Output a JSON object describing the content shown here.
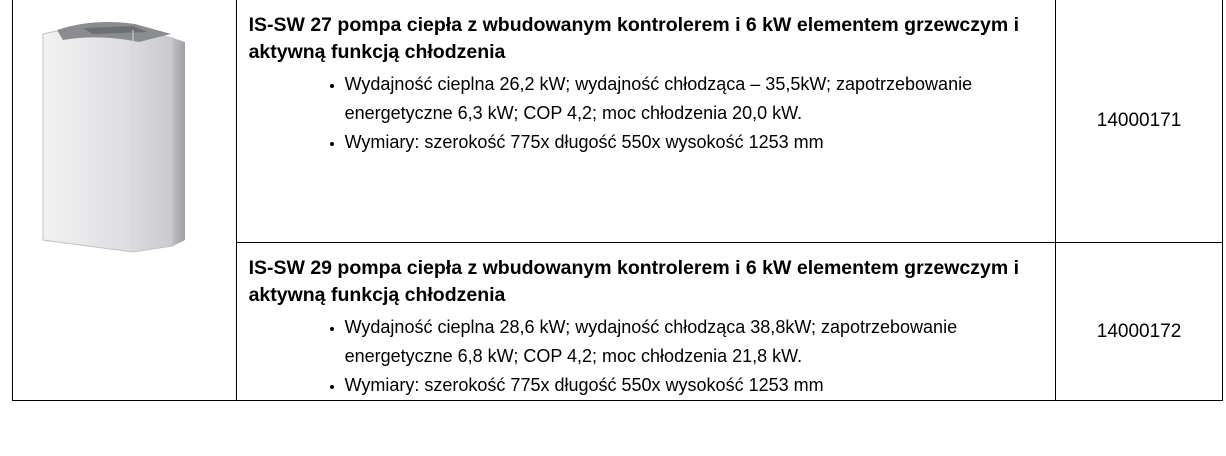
{
  "table": {
    "rows": [
      {
        "title": "IS-SW 27 pompa ciepła z wbudowanym kontrolerem i 6 kW elementem grzewczym i aktywną funkcją chłodzenia",
        "bullets": [
          "Wydajność cieplna 26,2 kW; wydajność chłodząca – 35,5kW; zapotrzebowanie energetyczne 6,3 kW; COP 4,2; moc chłodzenia 20,0 kW.",
          "Wymiary: szerokość  775x długość 550x wysokość 1253 mm"
        ],
        "code": "14000171"
      },
      {
        "title": "IS-SW 29 pompa ciepła z wbudowanym kontrolerem i 6 kW elementem grzewczym i aktywną funkcją chłodzenia",
        "bullets": [
          "Wydajność cieplna 28,6 kW; wydajność chłodząca 38,8kW; zapotrzebowanie energetyczne 6,8 kW; COP 4,2; moc chłodzenia 21,8 kW.",
          "Wymiary: szerokość  775x długość 550x wysokość 1253 mm"
        ],
        "code": "14000172"
      }
    ]
  }
}
